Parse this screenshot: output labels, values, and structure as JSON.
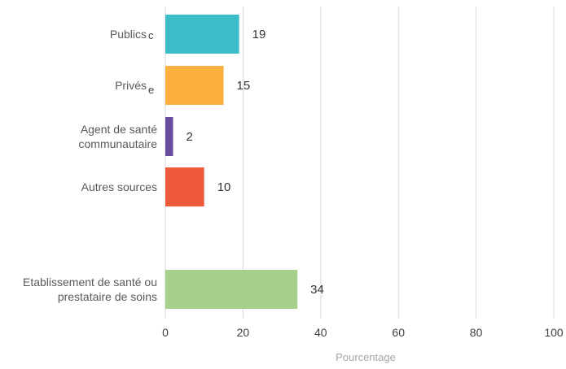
{
  "chart_data": {
    "type": "bar",
    "orientation": "horizontal",
    "xlabel": "Pourcentage",
    "xlim": [
      0,
      100
    ],
    "xticks": [
      "0",
      "20",
      "40",
      "60",
      "80",
      "100"
    ],
    "grid": "vertical",
    "categories": [
      {
        "label_lines": [
          "Publics"
        ],
        "sup": "c",
        "value": 19,
        "value_label": "19",
        "color": "#3bbcc6"
      },
      {
        "label_lines": [
          "Privés"
        ],
        "sup": "e",
        "value": 15,
        "value_label": "15",
        "color": "#fbb040"
      },
      {
        "label_lines": [
          "Agent de santé",
          "communautaire"
        ],
        "sup": "",
        "value": 2,
        "value_label": "2",
        "color": "#6a4c9c"
      },
      {
        "label_lines": [
          "Autres sources"
        ],
        "sup": "",
        "value": 10,
        "value_label": "10",
        "color": "#f05a3c"
      },
      {
        "label_lines": [
          "Etablissement de santé ou",
          "prestataire de soins"
        ],
        "sup": "",
        "value": 34,
        "value_label": "34",
        "color": "#a8d08d"
      }
    ]
  }
}
